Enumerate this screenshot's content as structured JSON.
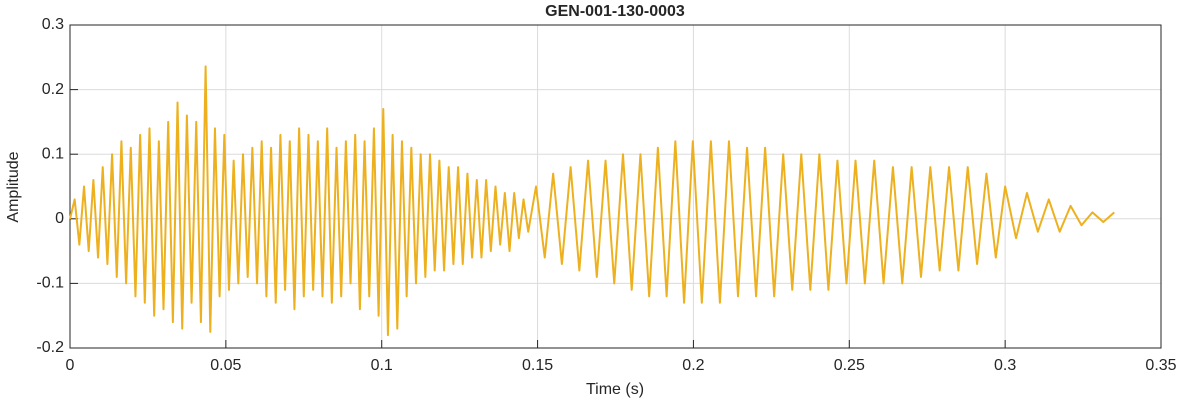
{
  "chart_data": {
    "type": "line",
    "title": "GEN-001-130-0003",
    "x_label": "Time (s)",
    "y_label": "Amplitude",
    "color": "#EDB120",
    "grid": true,
    "xlim": [
      0,
      0.35
    ],
    "xticks": [
      0,
      0.05,
      0.1,
      0.15,
      0.2,
      0.25,
      0.3,
      0.35
    ],
    "ylim": [
      -0.2,
      0.3
    ],
    "yticks": [
      -0.2,
      -0.1,
      0,
      0.1,
      0.2,
      0.3
    ],
    "x": [
      0,
      0.0015,
      0.003,
      0.0045,
      0.006,
      0.0075,
      0.009,
      0.0105,
      0.012,
      0.0135,
      0.015,
      0.0165,
      0.018,
      0.0195,
      0.021,
      0.0225,
      0.024,
      0.0255,
      0.027,
      0.0285,
      0.03,
      0.0315,
      0.033,
      0.0345,
      0.036,
      0.0375,
      0.039,
      0.0405,
      0.042,
      0.0435,
      0.045,
      0.0465,
      0.048,
      0.0495,
      0.051,
      0.0525,
      0.054,
      0.0555,
      0.057,
      0.0585,
      0.06,
      0.0615,
      0.063,
      0.0645,
      0.066,
      0.0675,
      0.069,
      0.0705,
      0.072,
      0.0735,
      0.075,
      0.0765,
      0.078,
      0.0795,
      0.081,
      0.0825,
      0.084,
      0.0855,
      0.087,
      0.0885,
      0.09,
      0.0915,
      0.093,
      0.0945,
      0.096,
      0.0975,
      0.099,
      0.1005,
      0.102,
      0.1035,
      0.105,
      0.1065,
      0.108,
      0.1095,
      0.111,
      0.1125,
      0.114,
      0.1155,
      0.117,
      0.1185,
      0.12,
      0.1215,
      0.123,
      0.1245,
      0.126,
      0.1275,
      0.129,
      0.1305,
      0.132,
      0.1335,
      0.135,
      0.1365,
      0.138,
      0.1395,
      0.141,
      0.1425,
      0.144,
      0.1455,
      0.147,
      0.1495,
      0.1523,
      0.155,
      0.1578,
      0.1606,
      0.1634,
      0.1662,
      0.169,
      0.1718,
      0.1746,
      0.1774,
      0.1802,
      0.183,
      0.1858,
      0.1886,
      0.1914,
      0.1942,
      0.197,
      0.1998,
      0.2027,
      0.2056,
      0.2085,
      0.2114,
      0.2143,
      0.2172,
      0.2201,
      0.223,
      0.2259,
      0.2288,
      0.2317,
      0.2346,
      0.2375,
      0.2404,
      0.2433,
      0.2462,
      0.2491,
      0.252,
      0.255,
      0.258,
      0.261,
      0.264,
      0.267,
      0.27,
      0.273,
      0.276,
      0.279,
      0.282,
      0.285,
      0.288,
      0.291,
      0.294,
      0.297,
      0.3,
      0.3035,
      0.307,
      0.3105,
      0.314,
      0.3175,
      0.321,
      0.3245,
      0.328,
      0.3315,
      0.335
    ],
    "values": [
      0,
      0.03,
      -0.04,
      0.05,
      -0.05,
      0.06,
      -0.06,
      0.08,
      -0.07,
      0.1,
      -0.09,
      0.12,
      -0.1,
      0.11,
      -0.12,
      0.13,
      -0.13,
      0.14,
      -0.15,
      0.12,
      -0.14,
      0.15,
      -0.16,
      0.18,
      -0.17,
      0.16,
      -0.13,
      0.15,
      -0.16,
      0.236,
      -0.175,
      0.14,
      -0.12,
      0.13,
      -0.11,
      0.09,
      -0.1,
      0.1,
      -0.09,
      0.11,
      -0.1,
      0.12,
      -0.12,
      0.11,
      -0.13,
      0.13,
      -0.11,
      0.12,
      -0.14,
      0.14,
      -0.12,
      0.13,
      -0.11,
      0.12,
      -0.12,
      0.14,
      -0.13,
      0.11,
      -0.12,
      0.12,
      -0.1,
      0.13,
      -0.14,
      0.12,
      -0.12,
      0.14,
      -0.15,
      0.17,
      -0.18,
      0.13,
      -0.17,
      0.12,
      -0.12,
      0.11,
      -0.1,
      0.1,
      -0.09,
      0.1,
      -0.08,
      0.09,
      -0.08,
      0.08,
      -0.07,
      0.08,
      -0.07,
      0.07,
      -0.06,
      0.06,
      -0.06,
      0.06,
      -0.05,
      0.05,
      -0.04,
      0.04,
      -0.05,
      0.04,
      -0.03,
      0.03,
      -0.02,
      0.05,
      -0.06,
      0.07,
      -0.07,
      0.08,
      -0.08,
      0.09,
      -0.09,
      0.09,
      -0.1,
      0.1,
      -0.11,
      0.1,
      -0.12,
      0.11,
      -0.12,
      0.12,
      -0.13,
      0.12,
      -0.13,
      0.12,
      -0.13,
      0.12,
      -0.12,
      0.11,
      -0.12,
      0.11,
      -0.12,
      0.1,
      -0.11,
      0.1,
      -0.11,
      0.1,
      -0.11,
      0.09,
      -0.1,
      0.09,
      -0.1,
      0.09,
      -0.1,
      0.08,
      -0.1,
      0.08,
      -0.09,
      0.08,
      -0.08,
      0.08,
      -0.08,
      0.08,
      -0.07,
      0.07,
      -0.06,
      0.05,
      -0.03,
      0.04,
      -0.02,
      0.03,
      -0.02,
      0.02,
      -0.01,
      0.01,
      -0.005,
      0.01
    ]
  }
}
